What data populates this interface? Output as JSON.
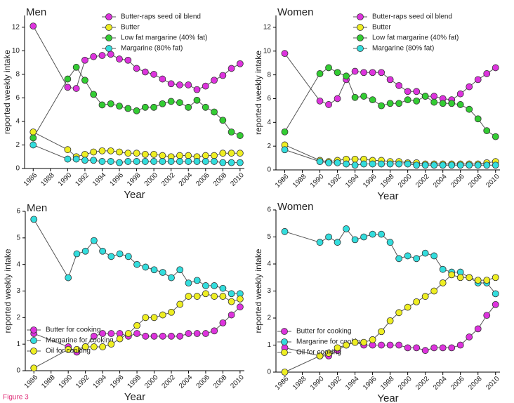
{
  "figure_label": "Figure 3",
  "chart_data": [
    {
      "type": "line",
      "title": "Men",
      "x_label": "Year",
      "y_label": "reported weekly intake",
      "x": [
        1986,
        1990,
        1991,
        1992,
        1993,
        1994,
        1995,
        1996,
        1997,
        1998,
        1999,
        2000,
        2001,
        2002,
        2003,
        2004,
        2005,
        2006,
        2007,
        2008,
        2009,
        2010
      ],
      "xlim": [
        1985,
        2010.5
      ],
      "xticks": [
        1986,
        1988,
        1990,
        1992,
        1994,
        1996,
        1998,
        2000,
        2002,
        2004,
        2006,
        2008,
        2010
      ],
      "ylim": [
        0,
        13
      ],
      "yticks": [
        0,
        2,
        4,
        6,
        8,
        10,
        12
      ],
      "legend": "top-right",
      "series": [
        {
          "name": "Butter-raps seed oil blend",
          "color": "#dd33dd",
          "values": [
            12.1,
            6.9,
            6.8,
            9.2,
            9.5,
            9.6,
            9.7,
            9.3,
            9.2,
            8.5,
            8.2,
            8.0,
            7.6,
            7.2,
            7.1,
            7.1,
            6.7,
            7.0,
            7.5,
            7.9,
            8.5,
            8.9
          ]
        },
        {
          "name": "Butter",
          "color": "#eeee22",
          "values": [
            3.1,
            1.6,
            1.0,
            1.2,
            1.4,
            1.5,
            1.5,
            1.4,
            1.3,
            1.3,
            1.2,
            1.2,
            1.1,
            1.0,
            1.1,
            1.1,
            1.0,
            1.1,
            1.1,
            1.3,
            1.3,
            1.3
          ]
        },
        {
          "name": "Low fat margarine (40% fat)",
          "color": "#33cc33",
          "values": [
            2.6,
            7.6,
            8.6,
            7.5,
            6.3,
            5.4,
            5.5,
            5.3,
            5.1,
            4.9,
            5.2,
            5.2,
            5.5,
            5.7,
            5.6,
            5.2,
            5.8,
            5.2,
            4.8,
            4.1,
            3.1,
            2.8
          ]
        },
        {
          "name": "Margarine (80% fat)",
          "color": "#33dddd",
          "values": [
            2.0,
            0.8,
            0.8,
            0.7,
            0.7,
            0.6,
            0.6,
            0.5,
            0.6,
            0.6,
            0.6,
            0.6,
            0.6,
            0.6,
            0.6,
            0.6,
            0.6,
            0.6,
            0.6,
            0.5,
            0.5,
            0.5
          ]
        }
      ]
    },
    {
      "type": "line",
      "title": "Women",
      "x_label": "Year",
      "y_label": "reported weekly intake",
      "x": [
        1986,
        1990,
        1991,
        1992,
        1993,
        1994,
        1995,
        1996,
        1997,
        1998,
        1999,
        2000,
        2001,
        2002,
        2003,
        2004,
        2005,
        2006,
        2007,
        2008,
        2009,
        2010
      ],
      "xlim": [
        1985,
        2010.5
      ],
      "xticks": [
        1986,
        1988,
        1990,
        1992,
        1994,
        1996,
        1998,
        2000,
        2002,
        2004,
        2006,
        2008,
        2010
      ],
      "ylim": [
        0,
        13
      ],
      "yticks": [
        0,
        2,
        4,
        6,
        8,
        10,
        12
      ],
      "legend": "top-right",
      "series": [
        {
          "name": "Butter-raps seed oil blend",
          "color": "#dd33dd",
          "values": [
            9.8,
            5.8,
            5.5,
            6.0,
            7.6,
            8.3,
            8.2,
            8.2,
            8.2,
            7.6,
            7.1,
            6.6,
            6.6,
            6.2,
            6.2,
            6.0,
            5.9,
            6.4,
            7.0,
            7.6,
            8.1,
            8.6
          ]
        },
        {
          "name": "Butter",
          "color": "#eeee22",
          "values": [
            2.1,
            0.8,
            0.7,
            0.8,
            0.9,
            0.9,
            0.9,
            0.8,
            0.8,
            0.7,
            0.7,
            0.6,
            0.6,
            0.5,
            0.5,
            0.5,
            0.5,
            0.5,
            0.5,
            0.5,
            0.6,
            0.7
          ]
        },
        {
          "name": "Low fat margarine (40% fat)",
          "color": "#33cc33",
          "values": [
            3.2,
            8.1,
            8.6,
            8.2,
            7.9,
            6.1,
            6.2,
            5.9,
            5.4,
            5.6,
            5.6,
            5.9,
            5.8,
            6.2,
            5.7,
            5.6,
            5.6,
            5.5,
            5.1,
            4.3,
            3.3,
            2.8
          ]
        },
        {
          "name": "Margarine (80% fat)",
          "color": "#33dddd",
          "values": [
            1.7,
            0.7,
            0.6,
            0.6,
            0.5,
            0.4,
            0.5,
            0.5,
            0.5,
            0.5,
            0.5,
            0.5,
            0.4,
            0.4,
            0.4,
            0.4,
            0.4,
            0.4,
            0.4,
            0.4,
            0.4,
            0.4
          ]
        }
      ]
    },
    {
      "type": "line",
      "title": "Men",
      "x_label": "Year",
      "y_label": "reported weekly intake",
      "x": [
        1986,
        1990,
        1991,
        1992,
        1993,
        1994,
        1995,
        1996,
        1997,
        1998,
        1999,
        2000,
        2001,
        2002,
        2003,
        2004,
        2005,
        2006,
        2007,
        2008,
        2009,
        2010
      ],
      "xlim": [
        1985,
        2010.5
      ],
      "xticks": [
        1986,
        1988,
        1990,
        1992,
        1994,
        1996,
        1998,
        2000,
        2002,
        2004,
        2006,
        2008,
        2010
      ],
      "ylim": [
        0,
        6
      ],
      "yticks": [
        0,
        1,
        2,
        3,
        4,
        5,
        6
      ],
      "legend": "bottom-left",
      "series": [
        {
          "name": "Butter for cooking",
          "color": "#dd33dd",
          "values": [
            1.4,
            0.9,
            0.7,
            0.9,
            1.3,
            1.4,
            1.4,
            1.4,
            1.3,
            1.4,
            1.3,
            1.3,
            1.3,
            1.3,
            1.3,
            1.4,
            1.4,
            1.4,
            1.5,
            1.8,
            2.1,
            2.4
          ]
        },
        {
          "name": "Margarine for cooking",
          "color": "#33dddd",
          "values": [
            5.7,
            3.5,
            4.4,
            4.5,
            4.9,
            4.5,
            4.3,
            4.4,
            4.3,
            4.0,
            3.9,
            3.8,
            3.7,
            3.5,
            3.8,
            3.3,
            3.4,
            3.2,
            3.2,
            3.1,
            2.9,
            2.9
          ]
        },
        {
          "name": "Oil for cooking",
          "color": "#eeee22",
          "values": [
            0.1,
            0.8,
            0.8,
            0.9,
            0.9,
            0.9,
            1.0,
            1.2,
            1.4,
            1.7,
            2.0,
            2.0,
            2.1,
            2.2,
            2.5,
            2.8,
            2.8,
            2.9,
            2.8,
            2.8,
            2.6,
            2.7
          ]
        }
      ]
    },
    {
      "type": "line",
      "title": "Women",
      "x_label": "Year",
      "y_label": "reported weekly intake",
      "x": [
        1986,
        1990,
        1991,
        1992,
        1993,
        1994,
        1995,
        1996,
        1997,
        1998,
        1999,
        2000,
        2001,
        2002,
        2003,
        2004,
        2005,
        2006,
        2007,
        2008,
        2009,
        2010
      ],
      "xlim": [
        1985,
        2010.5
      ],
      "xticks": [
        1986,
        1988,
        1990,
        1992,
        1994,
        1996,
        1998,
        2000,
        2002,
        2004,
        2006,
        2008,
        2010
      ],
      "ylim": [
        0,
        6
      ],
      "yticks": [
        0,
        1,
        2,
        3,
        4,
        5,
        6
      ],
      "legend": "bottom-left",
      "series": [
        {
          "name": "Butter for cooking",
          "color": "#dd33dd",
          "values": [
            0.9,
            0.6,
            0.6,
            0.8,
            1.0,
            1.1,
            1.0,
            1.0,
            1.0,
            1.0,
            1.0,
            0.9,
            0.9,
            0.8,
            0.9,
            0.9,
            0.9,
            1.0,
            1.3,
            1.6,
            2.1,
            2.5
          ]
        },
        {
          "name": "Margarine for cooking",
          "color": "#33dddd",
          "values": [
            5.2,
            4.8,
            5.0,
            4.8,
            5.3,
            4.9,
            5.0,
            5.1,
            5.1,
            4.8,
            4.2,
            4.3,
            4.2,
            4.4,
            4.3,
            3.8,
            3.7,
            3.7,
            3.5,
            3.3,
            3.3,
            2.9
          ]
        },
        {
          "name": "Oil for cooking",
          "color": "#eeee22",
          "values": [
            0.0,
            0.6,
            0.7,
            0.9,
            1.0,
            1.1,
            1.1,
            1.2,
            1.5,
            1.9,
            2.2,
            2.4,
            2.6,
            2.8,
            3.0,
            3.3,
            3.6,
            3.5,
            3.5,
            3.4,
            3.4,
            3.5
          ]
        }
      ]
    }
  ]
}
